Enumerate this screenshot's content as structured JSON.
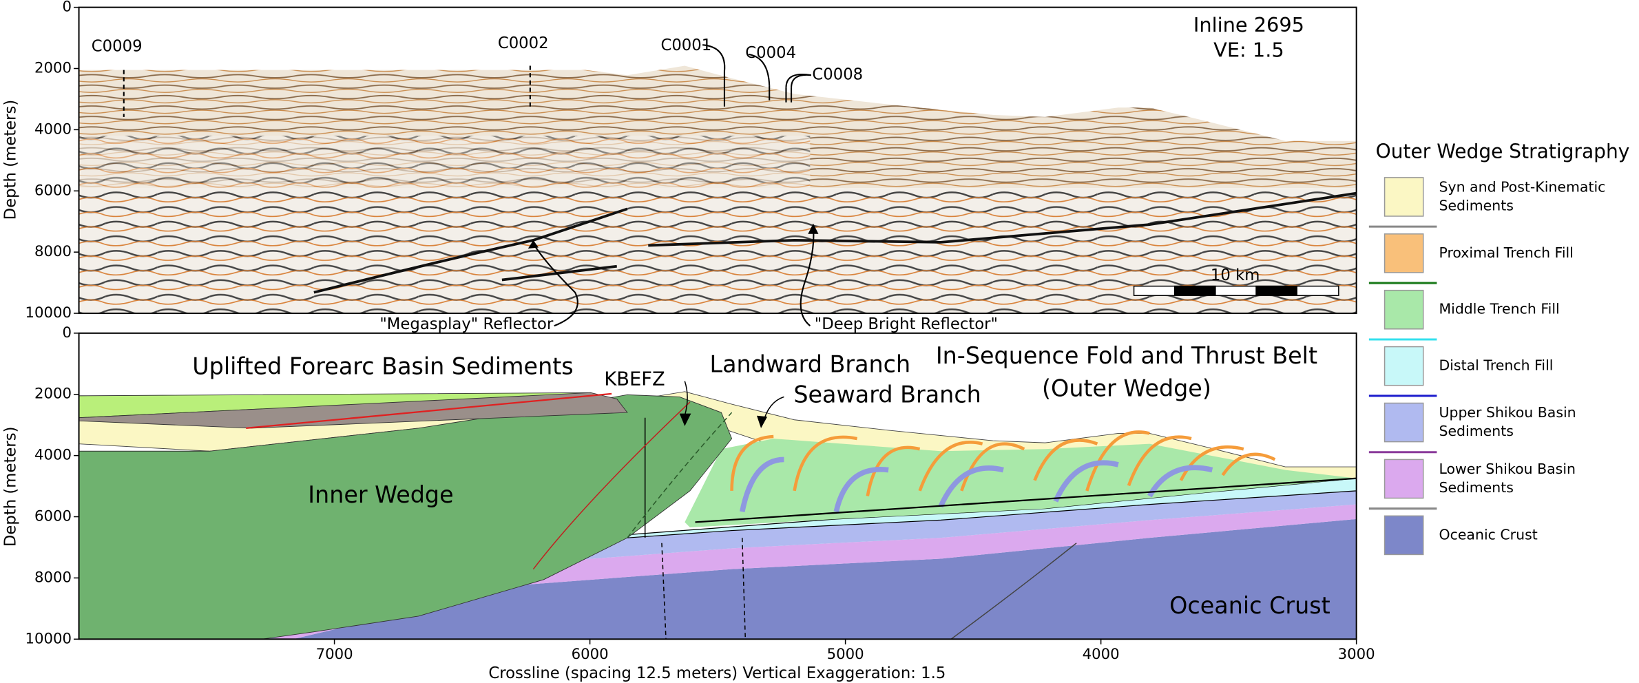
{
  "chart_data": [
    {
      "type": "seismic",
      "ylabel": "Depth (meters)",
      "xlim": [
        8000,
        3000
      ],
      "ylim": [
        10000,
        0
      ],
      "yticks": [
        0,
        2000,
        4000,
        6000,
        8000,
        10000
      ],
      "annotations": [
        "C0009",
        "C0002",
        "C0001",
        "C0004",
        "C0008",
        "Inline 2695",
        "VE: 1.5",
        "10 km",
        "\"Megasplay\" Reflector",
        "\"Deep Bright Reflector\""
      ]
    },
    {
      "type": "cross-section",
      "xlabel": "Crossline (spacing 12.5 meters) Vertical Exaggeration: 1.5",
      "ylabel": "Depth (meters)",
      "xlim": [
        8000,
        3000
      ],
      "ylim": [
        10000,
        0
      ],
      "xticks": [
        7000,
        6000,
        5000,
        4000,
        3000
      ],
      "yticks": [
        0,
        2000,
        4000,
        6000,
        8000,
        10000
      ],
      "annotations": [
        "Uplifted Forearc Basin Sediments",
        "KBEFZ",
        "Landward Branch",
        "Seaward Branch",
        "In-Sequence Fold and Thrust Belt",
        "(Outer Wedge)",
        "Inner Wedge",
        "Oceanic Crust"
      ],
      "legend": {
        "title": "Outer Wedge Stratigraphy",
        "items": [
          {
            "lines": [
              "Syn and Post-Kinematic",
              "Sediments"
            ],
            "color": "#fbf7c4"
          },
          {
            "lines": [
              "Proximal Trench Fill"
            ],
            "color": "#f9c07a"
          },
          {
            "lines": [
              "Middle Trench Fill"
            ],
            "color": "#a9e8a9"
          },
          {
            "lines": [
              "Distal Trench Fill"
            ],
            "color": "#c8f8f9"
          },
          {
            "lines": [
              "Upper Shikou Basin",
              "Sediments"
            ],
            "color": "#b0baf0"
          },
          {
            "lines": [
              "Lower Shikou Basin",
              "Sediments"
            ],
            "color": "#dba9ee"
          },
          {
            "lines": [
              "Oceanic Crust"
            ],
            "color": "#7d87c9"
          }
        ],
        "separators": [
          "#888888",
          "#1a7a1a",
          "#33e0ee",
          "#1a1acc",
          "#8a3a9a",
          "#888888"
        ]
      }
    }
  ]
}
